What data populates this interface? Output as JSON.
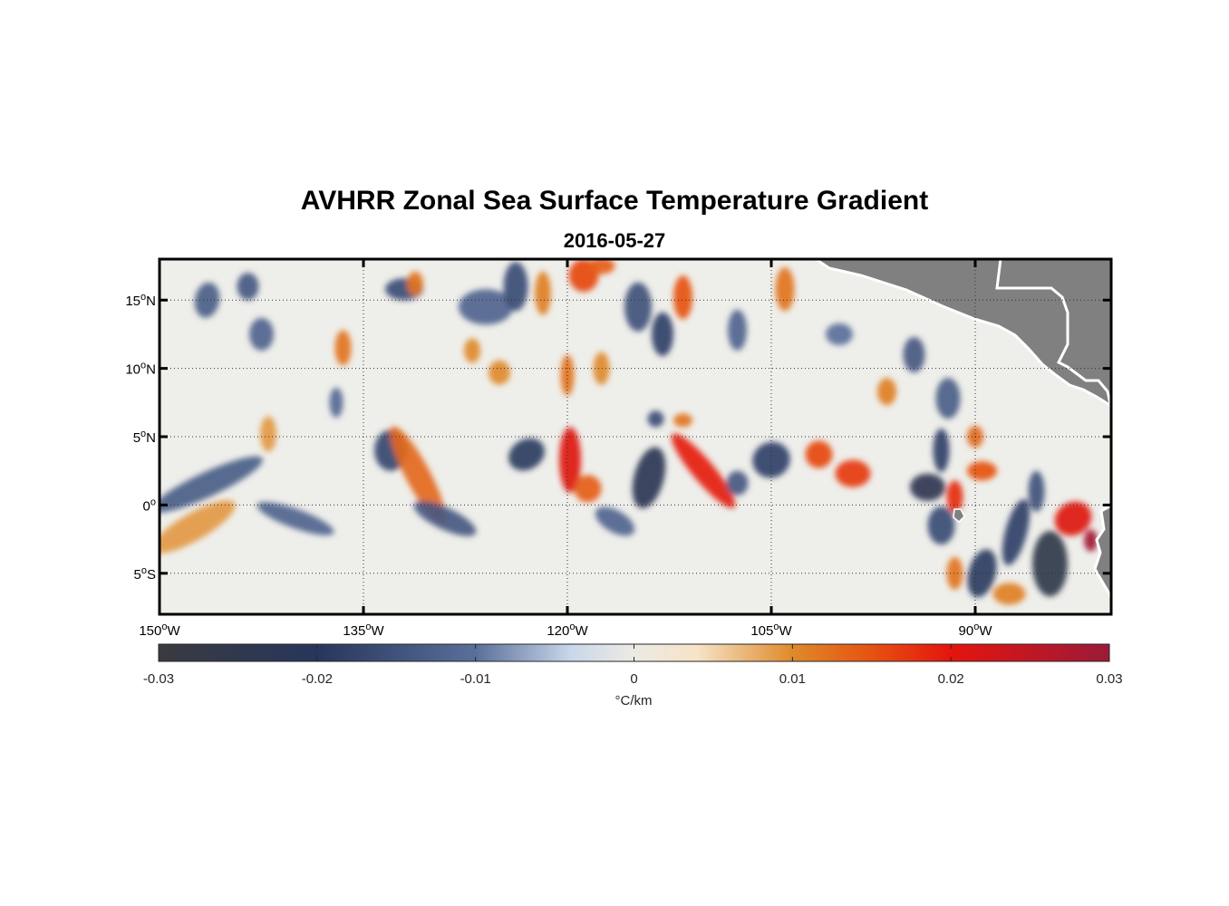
{
  "chart_data": {
    "type": "heatmap",
    "title": "AVHRR Zonal Sea Surface Temperature Gradient",
    "subtitle": "2016-05-27",
    "xlim": [
      -150,
      -80
    ],
    "ylim": [
      -8,
      18
    ],
    "x_ticks": [
      {
        "value": -150,
        "label": "150",
        "suffix": "W"
      },
      {
        "value": -135,
        "label": "135",
        "suffix": "W"
      },
      {
        "value": -120,
        "label": "120",
        "suffix": "W"
      },
      {
        "value": -105,
        "label": "105",
        "suffix": "W"
      },
      {
        "value": -90,
        "label": "90",
        "suffix": "W"
      }
    ],
    "y_ticks": [
      {
        "value": 15,
        "label": "15",
        "suffix": "N"
      },
      {
        "value": 10,
        "label": "10",
        "suffix": "N"
      },
      {
        "value": 5,
        "label": "5",
        "suffix": "N"
      },
      {
        "value": 0,
        "label": "0",
        "suffix": ""
      },
      {
        "value": -5,
        "label": "5",
        "suffix": "S"
      }
    ],
    "grid": "dotted",
    "land_color": "#808080",
    "colorbar": {
      "range": [
        -0.03,
        0.03
      ],
      "ticks": [
        -0.03,
        -0.02,
        -0.01,
        0,
        0.01,
        0.02,
        0.03
      ],
      "tick_labels": [
        "-0.03",
        "-0.02",
        "-0.01",
        "0",
        "0.01",
        "0.02",
        "0.03"
      ],
      "unit_label": "°C/km",
      "position": "bottom",
      "colormap_stops": [
        {
          "value": -0.03,
          "color": "#3a3b40"
        },
        {
          "value": -0.02,
          "color": "#27365c"
        },
        {
          "value": -0.01,
          "color": "#5a6f9a"
        },
        {
          "value": -0.004,
          "color": "#c9d7ea"
        },
        {
          "value": 0,
          "color": "#eceae4"
        },
        {
          "value": 0.004,
          "color": "#f6e3c8"
        },
        {
          "value": 0.01,
          "color": "#df8a2a"
        },
        {
          "value": 0.015,
          "color": "#e65211"
        },
        {
          "value": 0.02,
          "color": "#e5140e"
        },
        {
          "value": 0.03,
          "color": "#9b1a39"
        }
      ]
    },
    "features": [
      {
        "lon": -146.5,
        "lat": 15.0,
        "lonw": 0.9,
        "latw": 1.3,
        "angle": 10,
        "value": -0.013
      },
      {
        "lon": -143.5,
        "lat": 16.0,
        "lonw": 0.8,
        "latw": 1.0,
        "angle": 0,
        "value": -0.014
      },
      {
        "lon": -142.5,
        "lat": 12.5,
        "lonw": 0.9,
        "latw": 1.2,
        "angle": 0,
        "value": -0.012
      },
      {
        "lon": -142.0,
        "lat": 5.2,
        "lonw": 0.6,
        "latw": 1.3,
        "angle": 0,
        "value": 0.009
      },
      {
        "lon": -146.5,
        "lat": 1.5,
        "lonw": 4.5,
        "latw": 0.9,
        "angle": -25,
        "value": -0.013
      },
      {
        "lon": -147.5,
        "lat": -1.6,
        "lonw": 3.5,
        "latw": 1.0,
        "angle": -30,
        "value": 0.009
      },
      {
        "lon": -140.0,
        "lat": -1.0,
        "lonw": 3.0,
        "latw": 0.7,
        "angle": 20,
        "value": -0.012
      },
      {
        "lon": -136.5,
        "lat": 11.5,
        "lonw": 0.6,
        "latw": 1.3,
        "angle": 0,
        "value": 0.012
      },
      {
        "lon": -132.0,
        "lat": 15.8,
        "lonw": 1.4,
        "latw": 0.8,
        "angle": 0,
        "value": -0.016
      },
      {
        "lon": -131.2,
        "lat": 16.2,
        "lonw": 0.6,
        "latw": 0.9,
        "angle": 0,
        "value": 0.012
      },
      {
        "lon": -133.0,
        "lat": 4.0,
        "lonw": 1.2,
        "latw": 1.5,
        "angle": 0,
        "value": -0.017
      },
      {
        "lon": -131.0,
        "lat": 2.2,
        "lonw": 0.9,
        "latw": 4.0,
        "angle": -28,
        "value": 0.013
      },
      {
        "lon": -129.0,
        "lat": -1.0,
        "lonw": 2.5,
        "latw": 0.8,
        "angle": 25,
        "value": -0.014
      },
      {
        "lon": -126.0,
        "lat": 14.5,
        "lonw": 2.0,
        "latw": 1.3,
        "angle": 0,
        "value": -0.012
      },
      {
        "lon": -123.8,
        "lat": 16.0,
        "lonw": 0.9,
        "latw": 1.8,
        "angle": 0,
        "value": -0.016
      },
      {
        "lon": -121.8,
        "lat": 15.5,
        "lonw": 0.6,
        "latw": 1.6,
        "angle": 0,
        "value": 0.011
      },
      {
        "lon": -123.0,
        "lat": 3.7,
        "lonw": 1.4,
        "latw": 1.1,
        "angle": -30,
        "value": -0.019
      },
      {
        "lon": -119.8,
        "lat": 3.3,
        "lonw": 0.8,
        "latw": 2.4,
        "angle": 0,
        "value": 0.021
      },
      {
        "lon": -118.5,
        "lat": 1.2,
        "lonw": 1.0,
        "latw": 1.0,
        "angle": 0,
        "value": 0.014
      },
      {
        "lon": -118.8,
        "lat": 16.8,
        "lonw": 1.1,
        "latw": 1.2,
        "angle": 0,
        "value": 0.016
      },
      {
        "lon": -117.5,
        "lat": 17.5,
        "lonw": 1.0,
        "latw": 0.6,
        "angle": 0,
        "value": 0.014
      },
      {
        "lon": -114.8,
        "lat": 14.5,
        "lonw": 1.0,
        "latw": 1.8,
        "angle": 0,
        "value": -0.015
      },
      {
        "lon": -113.0,
        "lat": 12.5,
        "lonw": 0.8,
        "latw": 1.6,
        "angle": 0,
        "value": -0.018
      },
      {
        "lon": -111.5,
        "lat": 15.2,
        "lonw": 0.7,
        "latw": 1.6,
        "angle": 0,
        "value": 0.015
      },
      {
        "lon": -114.0,
        "lat": 2.0,
        "lonw": 1.1,
        "latw": 2.3,
        "angle": 15,
        "value": -0.023
      },
      {
        "lon": -110.0,
        "lat": 2.5,
        "lonw": 0.8,
        "latw": 3.5,
        "angle": -40,
        "value": 0.019
      },
      {
        "lon": -113.5,
        "lat": 6.3,
        "lonw": 0.6,
        "latw": 0.6,
        "angle": 0,
        "value": -0.016
      },
      {
        "lon": -111.5,
        "lat": 6.2,
        "lonw": 0.7,
        "latw": 0.5,
        "angle": 0,
        "value": 0.012
      },
      {
        "lon": -116.5,
        "lat": -1.2,
        "lonw": 1.6,
        "latw": 0.8,
        "angle": 30,
        "value": -0.012
      },
      {
        "lon": -105.0,
        "lat": 3.3,
        "lonw": 1.4,
        "latw": 1.3,
        "angle": -25,
        "value": -0.018
      },
      {
        "lon": -107.5,
        "lat": 1.6,
        "lonw": 0.8,
        "latw": 0.9,
        "angle": 0,
        "value": -0.014
      },
      {
        "lon": -101.5,
        "lat": 3.7,
        "lonw": 1.0,
        "latw": 1.0,
        "angle": 0,
        "value": 0.016
      },
      {
        "lon": -99.0,
        "lat": 2.3,
        "lonw": 1.3,
        "latw": 1.0,
        "angle": 0,
        "value": 0.017
      },
      {
        "lon": -104.0,
        "lat": 15.8,
        "lonw": 0.7,
        "latw": 1.6,
        "angle": 0,
        "value": 0.012
      },
      {
        "lon": -107.5,
        "lat": 12.8,
        "lonw": 0.7,
        "latw": 1.5,
        "angle": 0,
        "value": -0.012
      },
      {
        "lon": -94.5,
        "lat": 11.0,
        "lonw": 0.8,
        "latw": 1.3,
        "angle": 0,
        "value": -0.014
      },
      {
        "lon": -92.0,
        "lat": 7.8,
        "lonw": 0.9,
        "latw": 1.5,
        "angle": 0,
        "value": -0.013
      },
      {
        "lon": -92.5,
        "lat": 4.0,
        "lonw": 0.6,
        "latw": 1.6,
        "angle": 0,
        "value": -0.018
      },
      {
        "lon": -93.5,
        "lat": 1.3,
        "lonw": 1.3,
        "latw": 1.0,
        "angle": 0,
        "value": -0.024
      },
      {
        "lon": -91.5,
        "lat": 0.6,
        "lonw": 0.6,
        "latw": 1.2,
        "angle": 0,
        "value": 0.018
      },
      {
        "lon": -89.5,
        "lat": 2.5,
        "lonw": 1.1,
        "latw": 0.7,
        "angle": 0,
        "value": 0.015
      },
      {
        "lon": -90.0,
        "lat": 5.0,
        "lonw": 0.6,
        "latw": 0.8,
        "angle": 0,
        "value": 0.013
      },
      {
        "lon": -92.5,
        "lat": -1.5,
        "lonw": 1.0,
        "latw": 1.4,
        "angle": 0,
        "value": -0.016
      },
      {
        "lon": -89.5,
        "lat": -5.0,
        "lonw": 1.0,
        "latw": 1.8,
        "angle": 15,
        "value": -0.019
      },
      {
        "lon": -87.0,
        "lat": -2.0,
        "lonw": 0.8,
        "latw": 2.5,
        "angle": 15,
        "value": -0.018
      },
      {
        "lon": -84.5,
        "lat": -4.3,
        "lonw": 1.3,
        "latw": 2.4,
        "angle": 0,
        "value": -0.026
      },
      {
        "lon": -82.8,
        "lat": -1.0,
        "lonw": 1.4,
        "latw": 1.2,
        "angle": -30,
        "value": 0.021
      },
      {
        "lon": -81.5,
        "lat": -2.6,
        "lonw": 0.5,
        "latw": 0.8,
        "angle": 0,
        "value": 0.029
      },
      {
        "lon": -91.5,
        "lat": -5.0,
        "lonw": 0.6,
        "latw": 1.2,
        "angle": 0,
        "value": 0.012
      },
      {
        "lon": -85.5,
        "lat": 1.0,
        "lonw": 0.6,
        "latw": 1.5,
        "angle": 0,
        "value": -0.015
      },
      {
        "lon": -87.5,
        "lat": -6.5,
        "lonw": 1.2,
        "latw": 0.8,
        "angle": 0,
        "value": 0.011
      },
      {
        "lon": -137.0,
        "lat": 7.5,
        "lonw": 0.5,
        "latw": 1.1,
        "angle": 0,
        "value": -0.011
      },
      {
        "lon": -127.0,
        "lat": 11.3,
        "lonw": 0.6,
        "latw": 0.9,
        "angle": 0,
        "value": 0.01
      },
      {
        "lon": -120.0,
        "lat": 9.5,
        "lonw": 0.5,
        "latw": 1.5,
        "angle": 0,
        "value": 0.012
      },
      {
        "lon": -117.5,
        "lat": 10.0,
        "lonw": 0.6,
        "latw": 1.2,
        "angle": 0,
        "value": 0.01
      },
      {
        "lon": -100.0,
        "lat": 12.5,
        "lonw": 1.0,
        "latw": 0.8,
        "angle": 0,
        "value": -0.01
      },
      {
        "lon": -96.5,
        "lat": 8.3,
        "lonw": 0.7,
        "latw": 1.0,
        "angle": 0,
        "value": 0.011
      },
      {
        "lon": -125.0,
        "lat": 9.7,
        "lonw": 0.8,
        "latw": 0.9,
        "angle": 0,
        "value": 0.01
      }
    ]
  }
}
